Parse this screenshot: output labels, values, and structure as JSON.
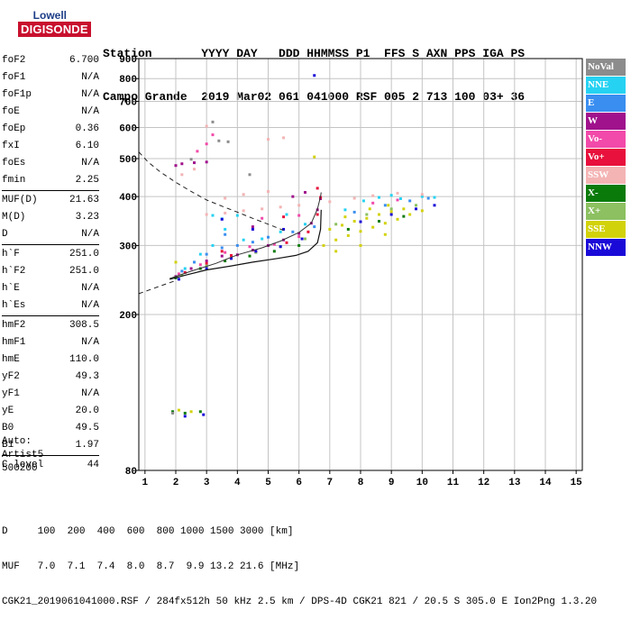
{
  "logo": {
    "top": "Lowell",
    "bottom": "DIGISONDE"
  },
  "header": {
    "line1": "Station       YYYY DAY   DDD HHMMSS P1  FFS S AXN PPS IGA PS",
    "line2": "Campo Grande  2019 Mar02 061 041000 RSF 005 2 713 100 03+ 36"
  },
  "params": [
    {
      "name": "foF2",
      "value": "6.700"
    },
    {
      "name": "foF1",
      "value": "N/A"
    },
    {
      "name": "foF1p",
      "value": "N/A"
    },
    {
      "name": "foE",
      "value": "N/A"
    },
    {
      "name": "foEp",
      "value": "0.36"
    },
    {
      "name": "fxI",
      "value": "6.10"
    },
    {
      "name": "foEs",
      "value": "N/A"
    },
    {
      "name": "fmin",
      "value": "2.25"
    },
    {
      "sep": true
    },
    {
      "name": "MUF(D)",
      "value": "21.63"
    },
    {
      "name": "M(D)",
      "value": "3.23"
    },
    {
      "name": "D",
      "value": "N/A"
    },
    {
      "sep": true
    },
    {
      "name": "h`F",
      "value": "251.0"
    },
    {
      "name": "h`F2",
      "value": "251.0"
    },
    {
      "name": "h`E",
      "value": "N/A"
    },
    {
      "name": "h`Es",
      "value": "N/A"
    },
    {
      "sep": true
    },
    {
      "name": "hmF2",
      "value": "308.5"
    },
    {
      "name": "hmF1",
      "value": "N/A"
    },
    {
      "name": "hmE",
      "value": "110.0"
    },
    {
      "name": "yF2",
      "value": "49.3"
    },
    {
      "name": "yF1",
      "value": "N/A"
    },
    {
      "name": "yE",
      "value": "20.0"
    },
    {
      "name": "B0",
      "value": "49.5"
    },
    {
      "name": "B1",
      "value": "1.97"
    },
    {
      "sep": true
    },
    {
      "name": "C-level",
      "value": "44"
    }
  ],
  "auto": {
    "line1": "Auto:",
    "line2": "Artist5",
    "line3": "500200"
  },
  "bottom": {
    "line1": "D     100  200  400  600  800 1000 1500 3000 [km]",
    "line2": "MUF   7.0  7.1  7.4  8.0  8.7  9.9 13.2 21.6 [MHz]",
    "line3": "CGK21_2019061041000.RSF / 284fx512h 50 kHz 2.5 km / DPS-4D CGK21 821 / 20.5 S 305.0 E Ion2Png 1.3.20"
  },
  "legend": [
    {
      "label": "NoVal",
      "color": "#8c8c8c",
      "text": "#ffffff"
    },
    {
      "label": "NNE",
      "color": "#26d2f2",
      "text": "#ffffff"
    },
    {
      "label": "E",
      "color": "#3a8ef0",
      "text": "#ffffff"
    },
    {
      "label": "W",
      "color": "#a0128c",
      "text": "#ffffff"
    },
    {
      "label": "Vo-",
      "color": "#f24aaa",
      "text": "#ffffff"
    },
    {
      "label": "Vo+",
      "color": "#e8103c",
      "text": "#ffffff"
    },
    {
      "label": "SSW",
      "color": "#f4b4b4",
      "text": "#ffffff"
    },
    {
      "label": "X-",
      "color": "#0a7a0a",
      "text": "#ffffff"
    },
    {
      "label": "X+",
      "color": "#8cc060",
      "text": "#ffffff"
    },
    {
      "label": "SSE",
      "color": "#d2d20a",
      "text": "#ffffff"
    },
    {
      "label": "NNW",
      "color": "#1a0ad8",
      "text": "#ffffff"
    }
  ],
  "chart_data": {
    "type": "scatter",
    "title": "",
    "xlabel": "",
    "ylabel": "",
    "xlim": [
      0.8,
      15.2
    ],
    "ylim": [
      80,
      900
    ],
    "x_ticks": [
      1,
      2,
      3,
      4,
      5,
      6,
      7,
      8,
      9,
      10,
      11,
      12,
      13,
      14,
      15
    ],
    "y_ticks": [
      80,
      200,
      300,
      400,
      500,
      600,
      700,
      800,
      900
    ],
    "y_scale": "log",
    "grid": true,
    "legend_position": "right",
    "series": [
      {
        "name": "NNE",
        "color": "#26d2f2",
        "values": [
          [
            2.3,
            262
          ],
          [
            2.8,
            285
          ],
          [
            3.2,
            300
          ],
          [
            3.6,
            330
          ],
          [
            4.2,
            310
          ],
          [
            4.8,
            312
          ],
          [
            5.4,
            325
          ],
          [
            6.2,
            340
          ],
          [
            7.5,
            370
          ],
          [
            8.1,
            390
          ],
          [
            8.6,
            398
          ],
          [
            9.3,
            395
          ],
          [
            10.0,
            400
          ],
          [
            10.4,
            398
          ],
          [
            3.5,
            351
          ],
          [
            3.2,
            358
          ],
          [
            4.0,
            358
          ],
          [
            5.6,
            360
          ],
          [
            9.0,
            403
          ]
        ]
      },
      {
        "name": "E",
        "color": "#3a8ef0",
        "values": [
          [
            2.2,
            258
          ],
          [
            2.6,
            272
          ],
          [
            3.0,
            285
          ],
          [
            3.5,
            296
          ],
          [
            4.0,
            300
          ],
          [
            4.5,
            306
          ],
          [
            5.0,
            315
          ],
          [
            5.8,
            325
          ],
          [
            6.5,
            335
          ],
          [
            7.8,
            365
          ],
          [
            8.8,
            380
          ],
          [
            9.6,
            390
          ],
          [
            10.2,
            396
          ],
          [
            3.6,
            320
          ]
        ]
      },
      {
        "name": "W",
        "color": "#a0128c",
        "values": [
          [
            2.0,
            250
          ],
          [
            2.5,
            262
          ],
          [
            3.0,
            274
          ],
          [
            3.5,
            282
          ],
          [
            4.0,
            284
          ],
          [
            4.5,
            292
          ],
          [
            5.0,
            300
          ],
          [
            5.5,
            310
          ],
          [
            6.0,
            322
          ],
          [
            6.4,
            342
          ],
          [
            6.6,
            370
          ],
          [
            6.7,
            395
          ],
          [
            2.0,
            480
          ],
          [
            2.2,
            485
          ],
          [
            2.6,
            488
          ],
          [
            3.0,
            490
          ],
          [
            5.8,
            400
          ],
          [
            6.2,
            410
          ],
          [
            4.5,
            335
          ]
        ]
      },
      {
        "name": "Vo-",
        "color": "#f24aaa",
        "values": [
          [
            2.1,
            254
          ],
          [
            2.8,
            268
          ],
          [
            3.6,
            288
          ],
          [
            4.4,
            298
          ],
          [
            5.2,
            302
          ],
          [
            6.0,
            316
          ],
          [
            2.7,
            522
          ],
          [
            3.0,
            545
          ],
          [
            3.2,
            575
          ],
          [
            4.8,
            352
          ],
          [
            6.0,
            358
          ],
          [
            8.4,
            385
          ],
          [
            9.2,
            392
          ]
        ]
      },
      {
        "name": "Vo+",
        "color": "#e8103c",
        "values": [
          [
            2.3,
            256
          ],
          [
            3.0,
            270
          ],
          [
            3.8,
            283
          ],
          [
            4.6,
            290
          ],
          [
            5.6,
            305
          ],
          [
            6.3,
            325
          ],
          [
            6.6,
            360
          ],
          [
            6.7,
            398
          ],
          [
            3.5,
            290
          ],
          [
            5.5,
            355
          ],
          [
            6.6,
            420
          ]
        ]
      },
      {
        "name": "SSW",
        "color": "#f4b4b4",
        "values": [
          [
            3.0,
            360
          ],
          [
            3.6,
            363
          ],
          [
            4.2,
            368
          ],
          [
            4.8,
            372
          ],
          [
            5.4,
            376
          ],
          [
            6.0,
            380
          ],
          [
            7.0,
            388
          ],
          [
            7.8,
            396
          ],
          [
            8.4,
            402
          ],
          [
            9.2,
            408
          ],
          [
            10.0,
            405
          ],
          [
            3.6,
            396
          ],
          [
            4.2,
            405
          ],
          [
            5.0,
            412
          ],
          [
            2.2,
            455
          ],
          [
            2.6,
            470
          ],
          [
            3.0,
            605
          ],
          [
            5.0,
            560
          ],
          [
            5.5,
            565
          ]
        ]
      },
      {
        "name": "X-",
        "color": "#0a7a0a",
        "values": [
          [
            2.0,
            248
          ],
          [
            2.8,
            262
          ],
          [
            3.6,
            274
          ],
          [
            4.4,
            282
          ],
          [
            5.2,
            290
          ],
          [
            6.0,
            300
          ],
          [
            7.6,
            330
          ],
          [
            8.6,
            346
          ],
          [
            9.4,
            356
          ],
          [
            1.9,
            113
          ],
          [
            2.3,
            112
          ],
          [
            2.8,
            113
          ]
        ]
      },
      {
        "name": "X+",
        "color": "#8cc060",
        "values": [
          [
            2.2,
            252
          ],
          [
            3.0,
            266
          ],
          [
            3.8,
            278
          ],
          [
            4.6,
            288
          ],
          [
            5.4,
            298
          ],
          [
            6.2,
            312
          ],
          [
            7.2,
            340
          ],
          [
            8.2,
            360
          ],
          [
            9.0,
            372
          ],
          [
            9.8,
            380
          ]
        ]
      },
      {
        "name": "SSE",
        "color": "#d2d20a",
        "values": [
          [
            6.8,
            300
          ],
          [
            7.2,
            310
          ],
          [
            7.6,
            318
          ],
          [
            8.0,
            326
          ],
          [
            8.4,
            334
          ],
          [
            8.8,
            342
          ],
          [
            9.2,
            350
          ],
          [
            9.6,
            360
          ],
          [
            10.0,
            368
          ],
          [
            7.0,
            330
          ],
          [
            7.4,
            338
          ],
          [
            7.8,
            346
          ],
          [
            8.2,
            352
          ],
          [
            8.6,
            360
          ],
          [
            9.0,
            366
          ],
          [
            9.4,
            372
          ],
          [
            7.2,
            290
          ],
          [
            8.0,
            300
          ],
          [
            8.8,
            320
          ],
          [
            7.5,
            355
          ],
          [
            8.3,
            372
          ],
          [
            8.9,
            380
          ],
          [
            2.1,
            114
          ],
          [
            2.5,
            113
          ],
          [
            6.5,
            505
          ],
          [
            2.0,
            272
          ]
        ]
      },
      {
        "name": "NNW",
        "color": "#1a0ad8",
        "values": [
          [
            6.5,
            815
          ],
          [
            2.1,
            246
          ],
          [
            3.0,
            262
          ],
          [
            3.8,
            278
          ],
          [
            4.6,
            290
          ],
          [
            5.4,
            298
          ],
          [
            6.1,
            312
          ],
          [
            8.0,
            345
          ],
          [
            9.0,
            360
          ],
          [
            9.8,
            372
          ],
          [
            10.4,
            380
          ],
          [
            2.3,
            110
          ],
          [
            2.9,
            111
          ],
          [
            3.5,
            350
          ],
          [
            4.5,
            330
          ],
          [
            5.5,
            330
          ]
        ]
      },
      {
        "name": "NoVal",
        "color": "#8c8c8c",
        "values": [
          [
            3.2,
            620
          ],
          [
            3.4,
            555
          ],
          [
            3.7,
            552
          ],
          [
            2.5,
            498
          ],
          [
            4.4,
            455
          ],
          [
            1.9,
            112
          ]
        ]
      }
    ],
    "profile_solid": [
      [
        1.8,
        246
      ],
      [
        2.3,
        252
      ],
      [
        3.0,
        260
      ],
      [
        3.8,
        266
      ],
      [
        4.5,
        272
      ],
      [
        5.3,
        278
      ],
      [
        5.9,
        283
      ],
      [
        6.3,
        290
      ],
      [
        6.6,
        305
      ],
      [
        6.7,
        330
      ],
      [
        6.72,
        370
      ]
    ],
    "profile_solid2": [
      [
        1.8,
        247
      ],
      [
        2.5,
        258
      ],
      [
        3.3,
        270
      ],
      [
        4.0,
        284
      ],
      [
        4.8,
        296
      ],
      [
        5.4,
        308
      ],
      [
        6.0,
        324
      ],
      [
        6.4,
        342
      ],
      [
        6.6,
        372
      ],
      [
        6.7,
        400
      ],
      [
        6.72,
        410
      ]
    ],
    "profile_dashed": [
      [
        0.8,
        520
      ],
      [
        1.1,
        490
      ],
      [
        1.5,
        462
      ],
      [
        2.0,
        435
      ],
      [
        2.5,
        412
      ],
      [
        3.0,
        392
      ],
      [
        3.5,
        378
      ],
      [
        4.0,
        365
      ],
      [
        4.5,
        352
      ],
      [
        5.0,
        340
      ],
      [
        5.5,
        328
      ]
    ],
    "profile_dashed2": [
      [
        0.8,
        226
      ],
      [
        1.2,
        232
      ],
      [
        1.6,
        238
      ],
      [
        2.0,
        244
      ]
    ]
  }
}
